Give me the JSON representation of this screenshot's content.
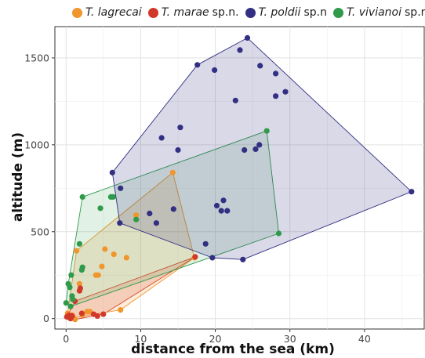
{
  "chart_data": {
    "type": "scatter",
    "xlabel": "distance from the sea (km)",
    "ylabel": "altitude (m)",
    "xlim": [
      -1.5,
      48
    ],
    "ylim": [
      -60,
      1680
    ],
    "xticks": [
      0,
      10,
      20,
      30,
      40
    ],
    "yticks": [
      0,
      500,
      1000,
      1500
    ],
    "grid": true,
    "legend_position": "top",
    "series": [
      {
        "name": "T. lagrecai",
        "suffix": "",
        "color": "#F0962C",
        "points": [
          [
            0.2,
            30
          ],
          [
            0.5,
            10
          ],
          [
            0.8,
            20
          ],
          [
            1.0,
            5
          ],
          [
            1.2,
            -5
          ],
          [
            1.4,
            390
          ],
          [
            1.8,
            200
          ],
          [
            2.2,
            20
          ],
          [
            2.8,
            40
          ],
          [
            3.2,
            40
          ],
          [
            4.0,
            250
          ],
          [
            4.3,
            250
          ],
          [
            4.8,
            300
          ],
          [
            5.2,
            400
          ],
          [
            6.4,
            370
          ],
          [
            7.3,
            50
          ],
          [
            8.1,
            350
          ],
          [
            9.4,
            595
          ],
          [
            14.3,
            840
          ],
          [
            17.2,
            350
          ]
        ]
      },
      {
        "name": "T. marae",
        "suffix": "sp.n.",
        "color": "#D2382A",
        "points": [
          [
            0.1,
            10
          ],
          [
            0.4,
            20
          ],
          [
            0.6,
            0
          ],
          [
            0.8,
            15
          ],
          [
            1.2,
            100
          ],
          [
            1.8,
            160
          ],
          [
            1.9,
            175
          ],
          [
            2.1,
            30
          ],
          [
            3.7,
            25
          ],
          [
            4.2,
            15
          ],
          [
            5.0,
            25
          ],
          [
            17.3,
            355
          ]
        ]
      },
      {
        "name": "T. poldii",
        "suffix": "sp.n",
        "color": "#332F82",
        "points": [
          [
            6.2,
            840
          ],
          [
            7.3,
            750
          ],
          [
            7.2,
            550
          ],
          [
            11.2,
            605
          ],
          [
            12.1,
            550
          ],
          [
            12.8,
            1040
          ],
          [
            14.4,
            630
          ],
          [
            15.0,
            970
          ],
          [
            15.3,
            1100
          ],
          [
            17.6,
            1460
          ],
          [
            18.7,
            430
          ],
          [
            19.6,
            350
          ],
          [
            19.9,
            1430
          ],
          [
            20.2,
            650
          ],
          [
            20.8,
            620
          ],
          [
            21.1,
            680
          ],
          [
            21.6,
            620
          ],
          [
            22.7,
            1255
          ],
          [
            23.3,
            1545
          ],
          [
            23.7,
            340
          ],
          [
            23.9,
            970
          ],
          [
            24.3,
            1615
          ],
          [
            25.4,
            975
          ],
          [
            25.9,
            1000
          ],
          [
            26.0,
            1455
          ],
          [
            28.1,
            1410
          ],
          [
            28.1,
            1280
          ],
          [
            29.4,
            1305
          ],
          [
            46.3,
            730
          ]
        ]
      },
      {
        "name": "T. vivianoi",
        "suffix": "sp.n",
        "color": "#2E9A4A",
        "points": [
          [
            0.0,
            90
          ],
          [
            0.3,
            200
          ],
          [
            0.5,
            180
          ],
          [
            0.6,
            70
          ],
          [
            0.7,
            250
          ],
          [
            0.8,
            130
          ],
          [
            0.9,
            110
          ],
          [
            1.8,
            430
          ],
          [
            2.1,
            280
          ],
          [
            2.2,
            295
          ],
          [
            2.2,
            700
          ],
          [
            4.6,
            635
          ],
          [
            6.0,
            700
          ],
          [
            6.3,
            700
          ],
          [
            9.4,
            570
          ],
          [
            26.9,
            1080
          ],
          [
            28.5,
            490
          ]
        ]
      }
    ]
  },
  "hulls": [
    {
      "color": "#D2382A",
      "fill_opacity": 0.18,
      "pts": [
        [
          0.2,
          -5
        ],
        [
          1.2,
          -5
        ],
        [
          5.0,
          25
        ],
        [
          17.3,
          355
        ],
        [
          1.2,
          100
        ],
        [
          0.1,
          10
        ]
      ]
    },
    {
      "color": "#F0962C",
      "fill_opacity": 0.18,
      "pts": [
        [
          0.2,
          30
        ],
        [
          1.0,
          5
        ],
        [
          7.3,
          50
        ],
        [
          17.2,
          350
        ],
        [
          14.3,
          840
        ],
        [
          1.4,
          390
        ]
      ]
    },
    {
      "color": "#2E9A4A",
      "fill_opacity": 0.14,
      "pts": [
        [
          0.0,
          90
        ],
        [
          0.6,
          70
        ],
        [
          28.5,
          490
        ],
        [
          26.9,
          1080
        ],
        [
          2.2,
          700
        ],
        [
          0.3,
          200
        ]
      ]
    },
    {
      "color": "#332F82",
      "fill_opacity": 0.18,
      "pts": [
        [
          6.2,
          840
        ],
        [
          17.6,
          1460
        ],
        [
          24.3,
          1615
        ],
        [
          46.3,
          730
        ],
        [
          23.7,
          340
        ],
        [
          19.6,
          350
        ],
        [
          7.2,
          550
        ]
      ]
    }
  ]
}
